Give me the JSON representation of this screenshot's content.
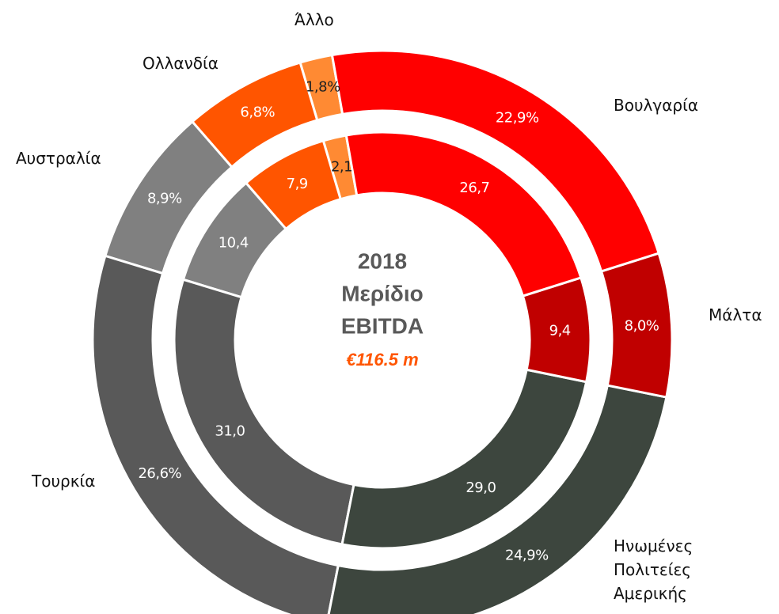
{
  "chart_data": {
    "type": "donut",
    "center_text": [
      "2018",
      "Μερίδιο",
      "EBITDA",
      "€116.5 m"
    ],
    "categories": [
      "Βουλγαρία",
      "Μάλτα",
      "Ηνωμένες Πολιτείες Αμερικής",
      "Τουρκία",
      "Αυστραλία",
      "Ολλανδία",
      "Άλλο"
    ],
    "colors": [
      "#ff0000",
      "#c00000",
      "#3d463e",
      "#595959",
      "#808080",
      "#ff5500",
      "#ff8a33"
    ],
    "series": [
      {
        "values": [
          22.9,
          8.0,
          24.9,
          26.6,
          8.9,
          6.8,
          1.8
        ],
        "value_labels": [
          "22,9%",
          "8,0%",
          "24,9%",
          "26,6%",
          "8,9%",
          "6,8%",
          "1,8%"
        ]
      },
      {
        "values": [
          26.7,
          9.4,
          29.0,
          31.0,
          10.4,
          7.9,
          2.1
        ],
        "value_labels": [
          "26,7",
          "9,4",
          "29,0",
          "31,0",
          "10,4",
          "7,9",
          "2,1"
        ]
      }
    ]
  }
}
